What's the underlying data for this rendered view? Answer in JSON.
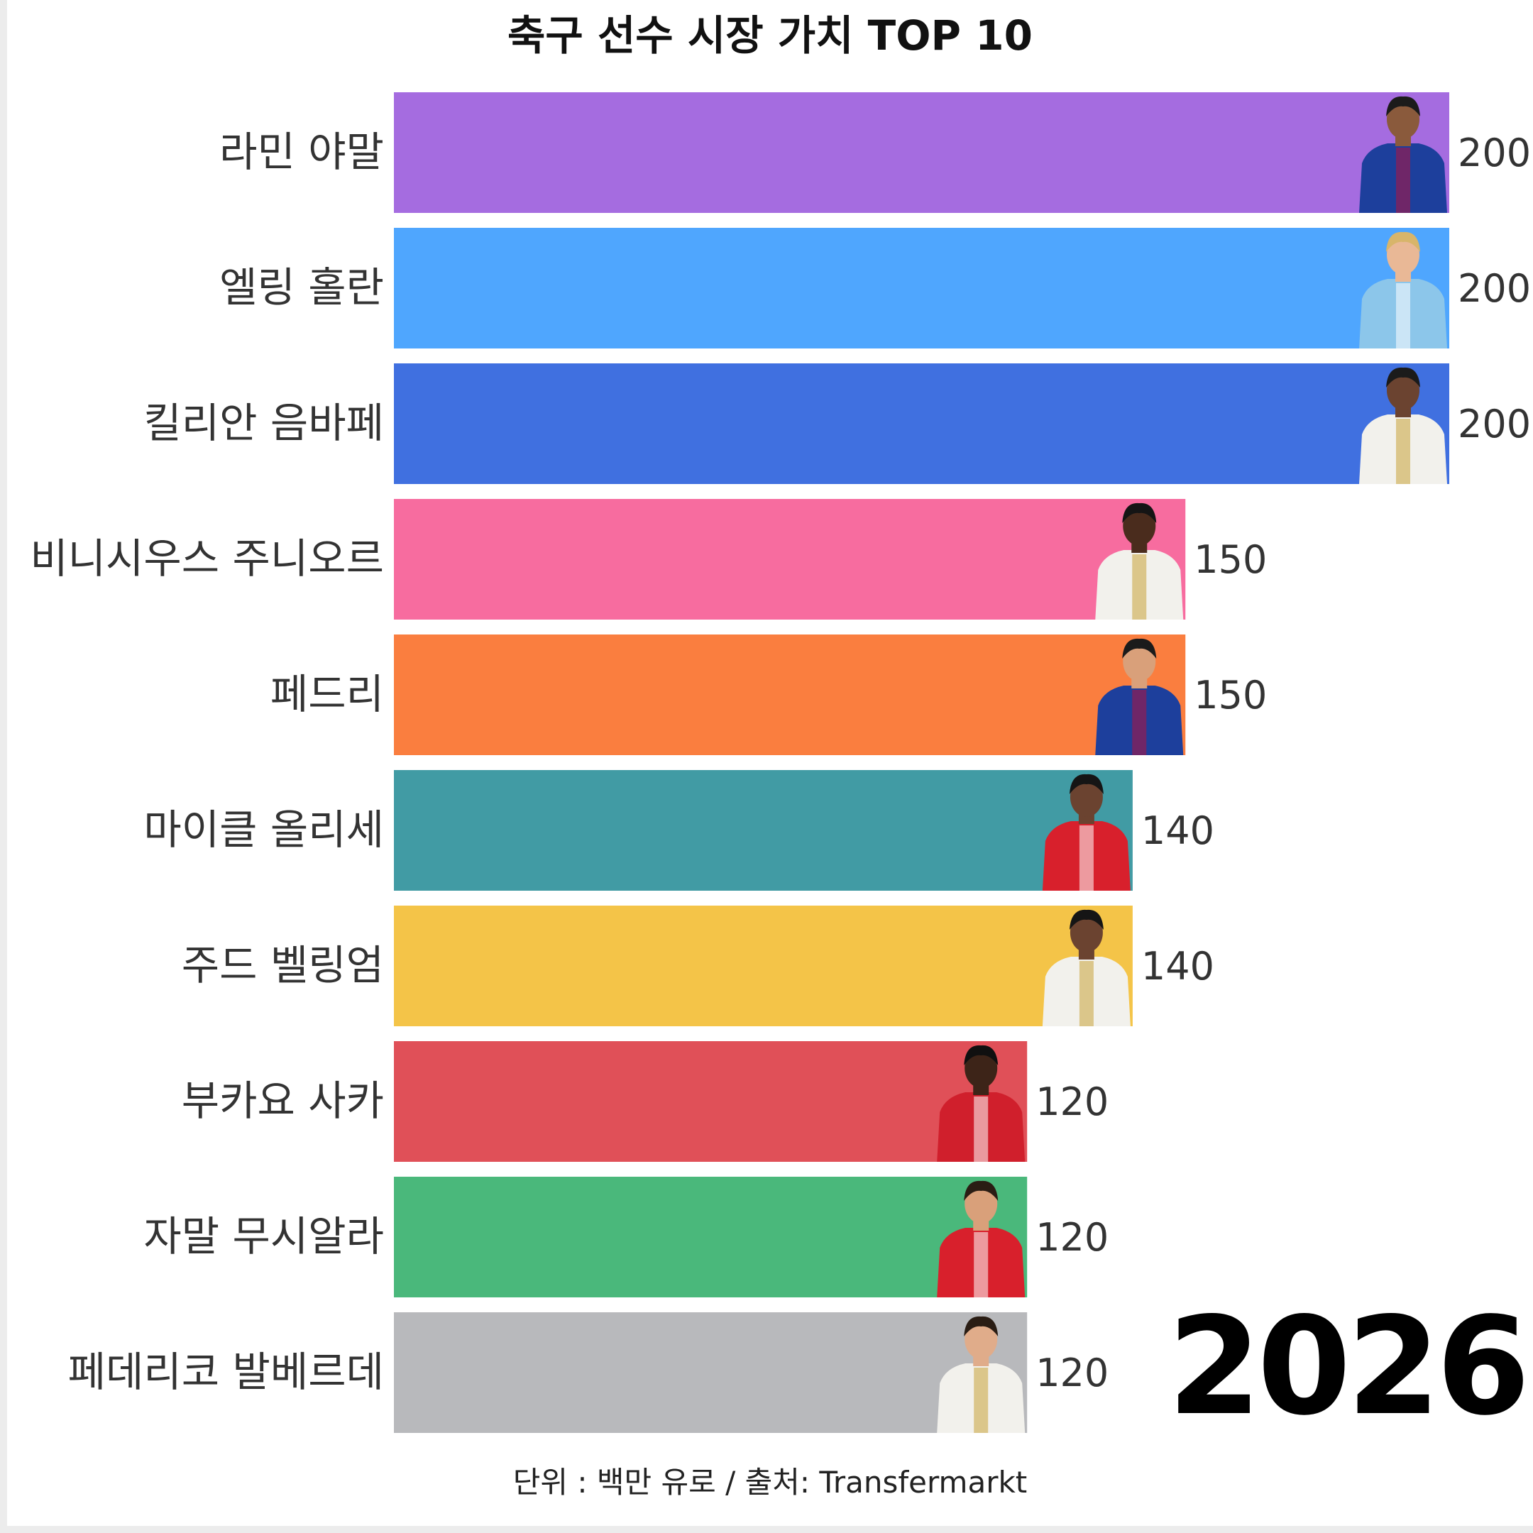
{
  "title": "축구 선수 시장 가치 TOP 10",
  "footnote": "단위 : 백만 유로 / 출처: Transfermarkt",
  "year": "2026",
  "chart_data": {
    "type": "bar",
    "orientation": "horizontal",
    "title": "축구 선수 시장 가치 TOP 10",
    "categories": [
      "라민 야말",
      "엘링 홀란",
      "킬리안 음바페",
      "비니시우스 주니오르",
      "페드리",
      "마이클 올리세",
      "주드 벨링엄",
      "부카요 사카",
      "자말 무시알라",
      "페데리코 발베르데"
    ],
    "values": [
      200,
      200,
      200,
      150,
      150,
      140,
      140,
      120,
      120,
      120
    ],
    "value_labels": [
      "200",
      "200",
      "200",
      "150",
      "150",
      "140",
      "140",
      "120",
      "120",
      "120"
    ],
    "colors": [
      "#a56ce0",
      "#4fa6fe",
      "#4070e0",
      "#f76c9f",
      "#fa7e3f",
      "#419ba4",
      "#f4c448",
      "#e05058",
      "#4ab87b",
      "#b8b9bc"
    ],
    "kits": [
      {
        "shirt": "#1d3f9c",
        "accent": "#b3123e",
        "skin": "#8a5a3c",
        "hair": "#1b1b1b"
      },
      {
        "shirt": "#8cc6ea",
        "accent": "#ffffff",
        "skin": "#e9b896",
        "hair": "#d8b56a"
      },
      {
        "shirt": "#f2f1ec",
        "accent": "#c9a33a",
        "skin": "#6b4330",
        "hair": "#1b1b1b"
      },
      {
        "shirt": "#f2f1ec",
        "accent": "#c9a33a",
        "skin": "#4a2c1d",
        "hair": "#151515"
      },
      {
        "shirt": "#1d3f9c",
        "accent": "#b3123e",
        "skin": "#d9a07a",
        "hair": "#1b1b1b"
      },
      {
        "shirt": "#d8202c",
        "accent": "#ffffff",
        "skin": "#6b4330",
        "hair": "#151515"
      },
      {
        "shirt": "#f2f1ec",
        "accent": "#c9a33a",
        "skin": "#6b4330",
        "hair": "#151515"
      },
      {
        "shirt": "#d01f2c",
        "accent": "#ffffff",
        "skin": "#3d2418",
        "hair": "#101010"
      },
      {
        "shirt": "#d8202c",
        "accent": "#ffffff",
        "skin": "#d9a07a",
        "hair": "#2a1d14"
      },
      {
        "shirt": "#f2f1ec",
        "accent": "#c9a33a",
        "skin": "#e0ac8a",
        "hair": "#2a1d14"
      }
    ],
    "xlim": [
      0,
      200
    ],
    "grid": false,
    "legend": "none"
  }
}
